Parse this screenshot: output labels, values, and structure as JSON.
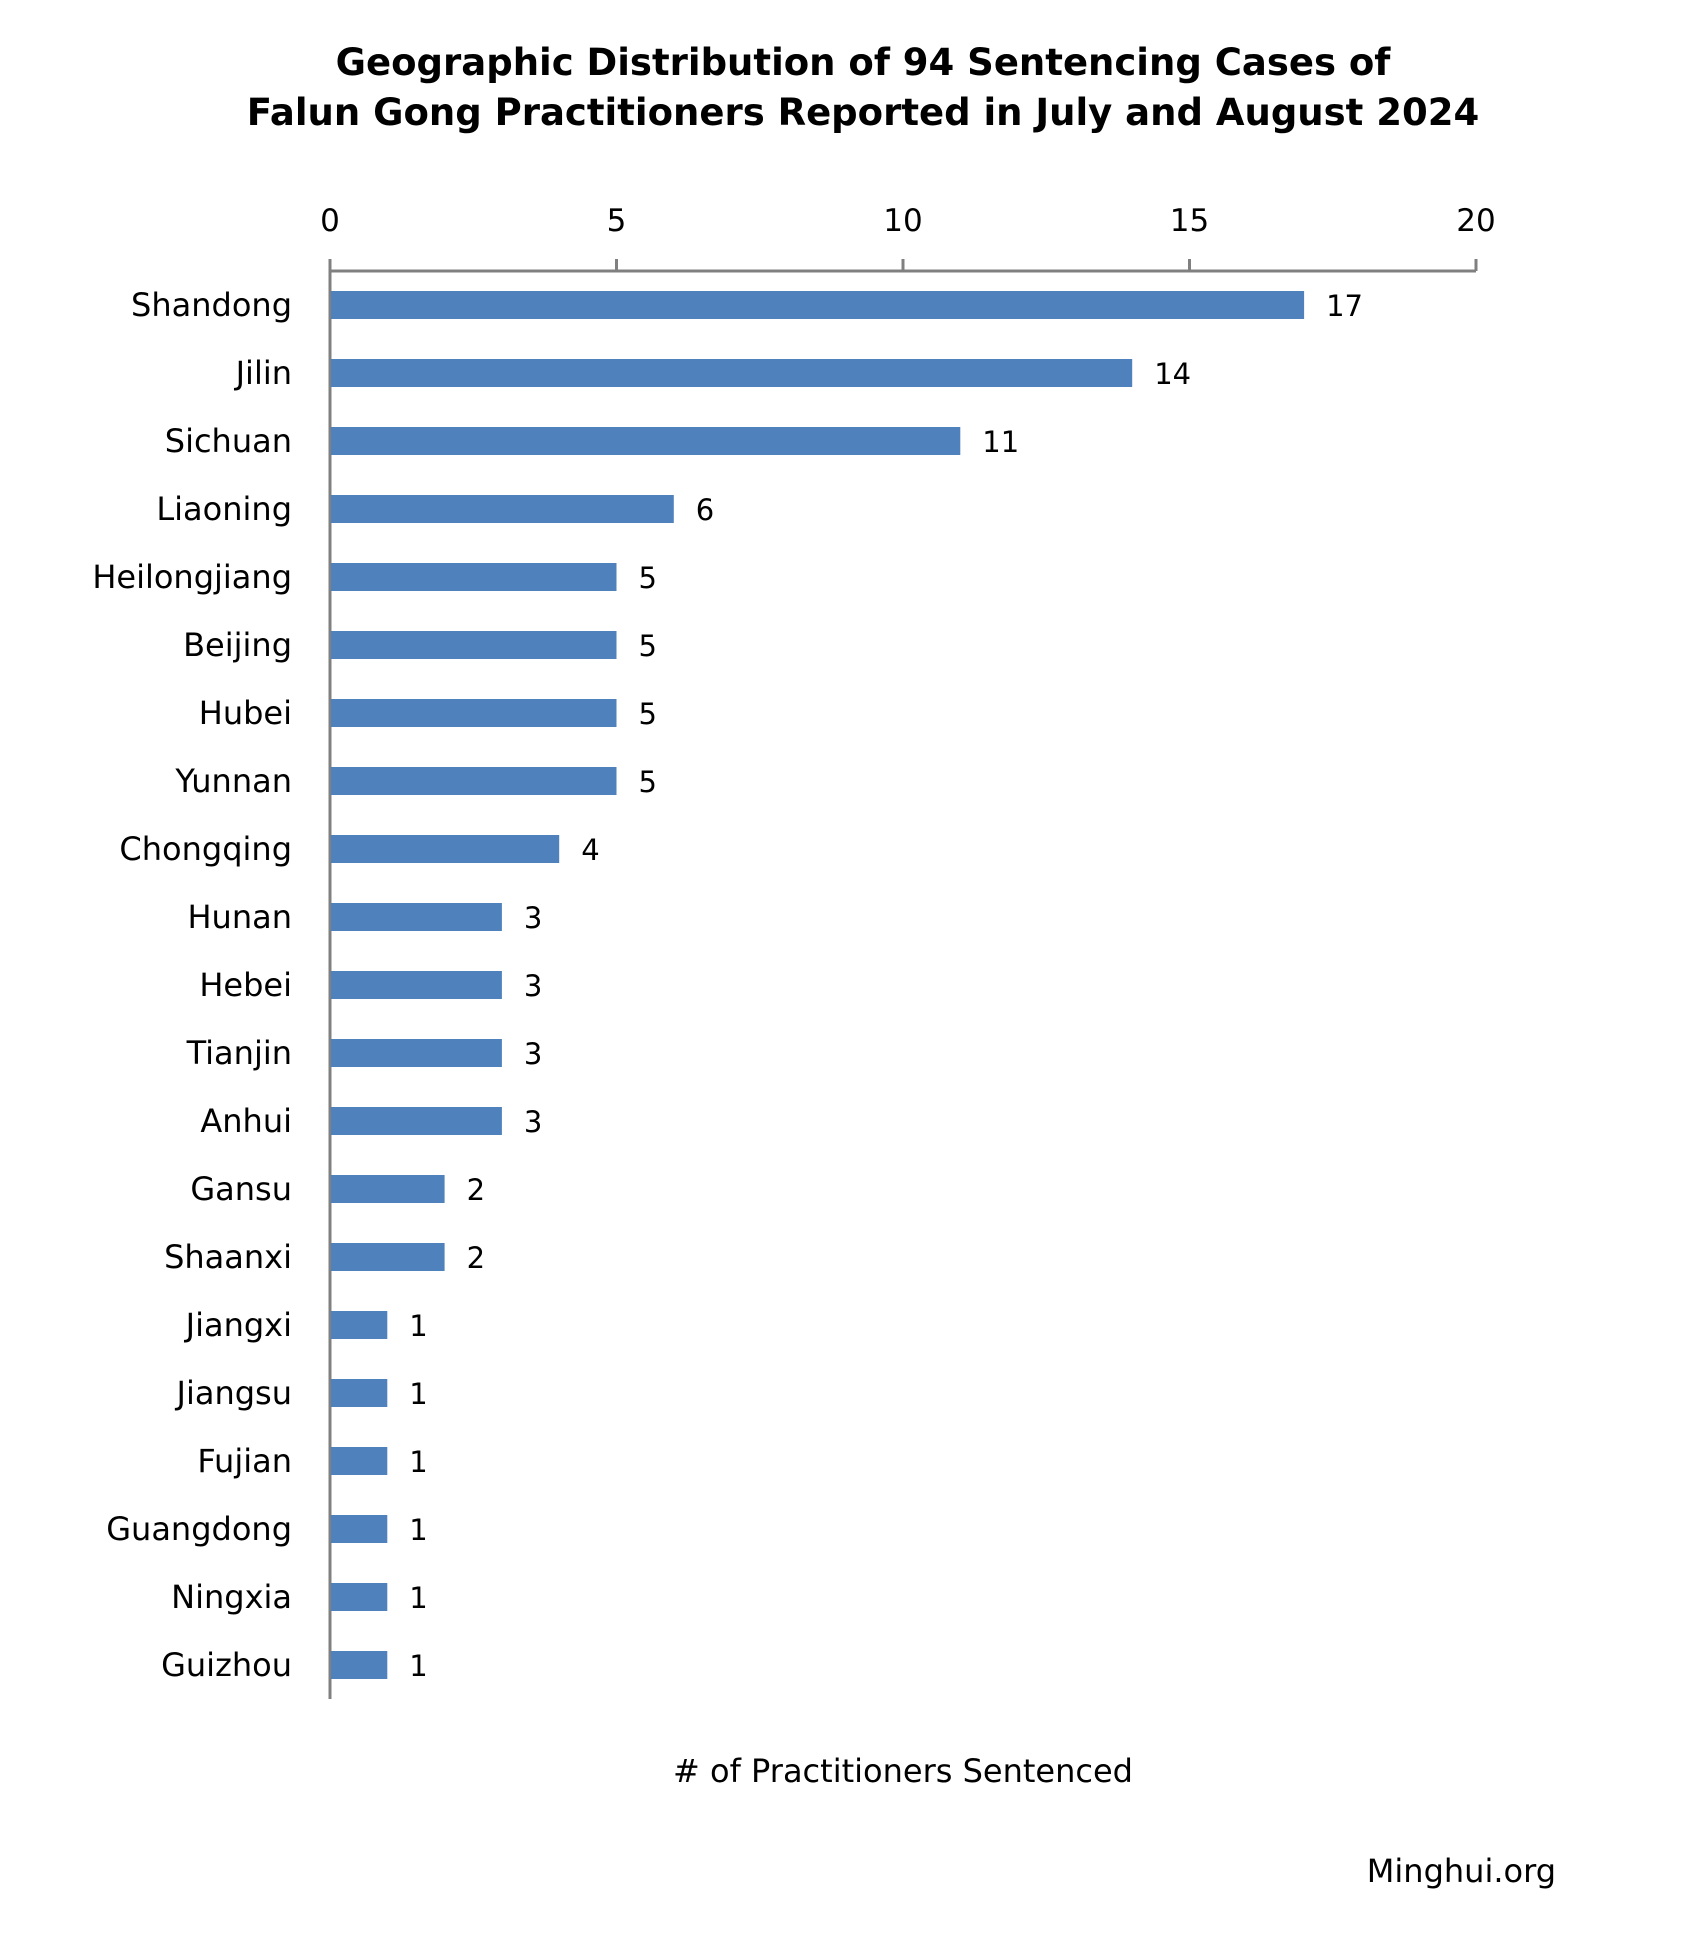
{
  "chart_data": {
    "type": "bar",
    "orientation": "horizontal",
    "title": [
      "Geographic Distribution of 94 Sentencing Cases of",
      "Falun Gong Practitioners Reported in July and August 2024"
    ],
    "xlabel": "# of Practitioners Sentenced",
    "ylabel": "",
    "xlim": [
      0,
      20
    ],
    "xticks": [
      "0",
      "5",
      "10",
      "15",
      "20"
    ],
    "tick_values": [
      0,
      5,
      10,
      15,
      20
    ],
    "categories": [
      "Shandong",
      "Jilin",
      "Sichuan",
      "Liaoning",
      "Heilongjiang",
      "Beijing",
      "Hubei",
      "Yunnan",
      "Chongqing",
      "Hunan",
      "Hebei",
      "Tianjin",
      "Anhui",
      "Gansu",
      "Shaanxi",
      "Jiangxi",
      "Jiangsu",
      "Fujian",
      "Guangdong",
      "Ningxia",
      "Guizhou"
    ],
    "values": [
      17,
      14,
      11,
      6,
      5,
      5,
      5,
      5,
      4,
      3,
      3,
      3,
      3,
      2,
      2,
      1,
      1,
      1,
      1,
      1,
      1
    ],
    "bar_color": "#4F81BD",
    "axis_color": "#808080",
    "axis_position": "top",
    "grid": false,
    "data_labels": true
  },
  "credit": "Minghui.org"
}
